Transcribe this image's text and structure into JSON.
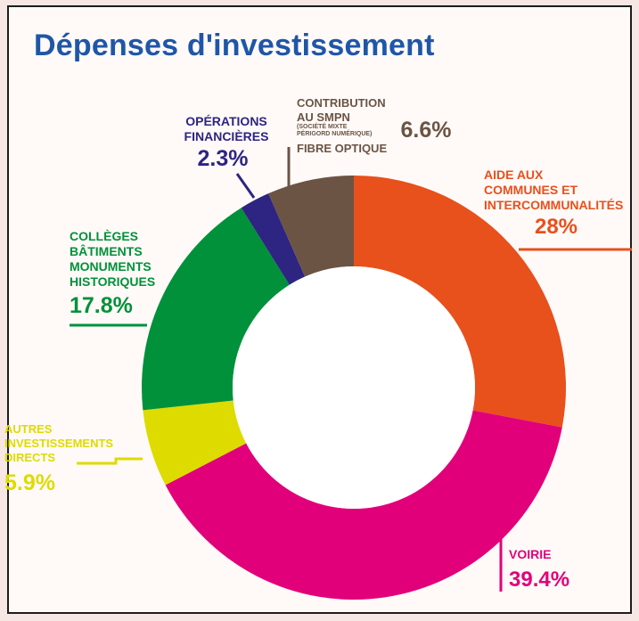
{
  "title": "Dépenses d'investissement",
  "chart_data": {
    "type": "pie",
    "donut": true,
    "unit": "%",
    "title": "Dépenses d'investissement",
    "slices": [
      {
        "key": "aide",
        "label_lines": [
          "AIDE AUX",
          "COMMUNES ET",
          "INTERCOMMUNALITÉS"
        ],
        "value": 28,
        "display": "28%",
        "color": "#e8501c"
      },
      {
        "key": "voirie",
        "label_lines": [
          "VOIRIE"
        ],
        "value": 39.4,
        "display": "39.4%",
        "color": "#e2007a"
      },
      {
        "key": "autres",
        "label_lines": [
          "AUTRES",
          "INVESTISSEMENTS",
          "DIRECTS"
        ],
        "value": 5.9,
        "display": "5.9%",
        "color": "#dedb00"
      },
      {
        "key": "colleges",
        "label_lines": [
          "COLLÈGES",
          "BÂTIMENTS",
          "MONUMENTS",
          "HISTORIQUES"
        ],
        "value": 17.8,
        "display": "17.8%",
        "color": "#00913a"
      },
      {
        "key": "operations",
        "label_lines": [
          "OPÉRATIONS",
          "FINANCIÈRES"
        ],
        "value": 2.3,
        "display": "2.3%",
        "color": "#2e2482"
      },
      {
        "key": "smpn",
        "label_lines": [
          "CONTRIBUTION",
          "AU SMPN"
        ],
        "sub_lines": [
          "(SOCIÉTÉ MIXTE",
          "PÉRIGORD NUMÉRIQUE)"
        ],
        "extra_line": "FIBRE OPTIQUE",
        "value": 6.6,
        "display": "6.6%",
        "color": "#6b5444"
      }
    ]
  }
}
